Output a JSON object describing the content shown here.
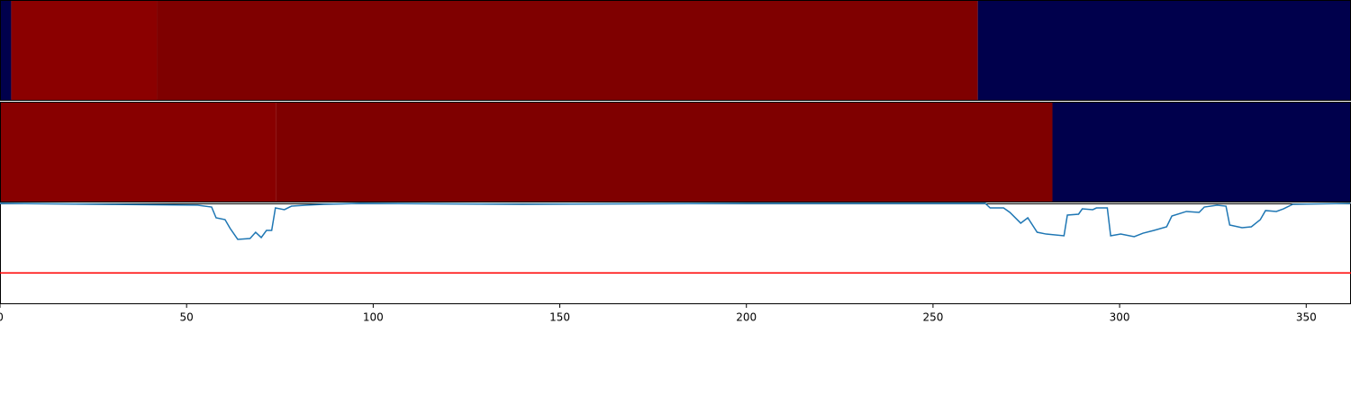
{
  "chart_data": {
    "type": "line",
    "xlim": [
      0,
      362
    ],
    "xticks": [
      0,
      50,
      100,
      150,
      200,
      250,
      300,
      350
    ],
    "ylim": [
      0,
      1
    ],
    "bands": [
      [
        {
          "start": 0,
          "end": 3,
          "color": "#00004c"
        },
        {
          "start": 3,
          "end": 42,
          "color": "#8b0000"
        },
        {
          "start": 42,
          "end": 262,
          "color": "#7f0000"
        },
        {
          "start": 262,
          "end": 362,
          "color": "#00004c"
        }
      ],
      [
        {
          "start": 0,
          "end": 74,
          "color": "#880000"
        },
        {
          "start": 74,
          "end": 282,
          "color": "#7f0000"
        },
        {
          "start": 282,
          "end": 362,
          "color": "#00004c"
        }
      ]
    ],
    "x": [
      0,
      30,
      53,
      56.7,
      57.9,
      60.3,
      61.7,
      63.7,
      67,
      68.5,
      70,
      71.4,
      72.8,
      73.8,
      76.2,
      78.1,
      82,
      86.8,
      96.5,
      140,
      200,
      264,
      265.3,
      268.9,
      270.6,
      273.5,
      275.4,
      277.9,
      280.3,
      285.1,
      286,
      289,
      290,
      292.8,
      293.8,
      296.7,
      297.6,
      300.3,
      303.9,
      306.3,
      309.2,
      312.6,
      314,
      317.9,
      321.3,
      322.7,
      326.1,
      328.5,
      329.5,
      332.8,
      335.3,
      337.7,
      339.1,
      342,
      343.9,
      346.4,
      361.8
    ],
    "series": [
      {
        "color": "#1f77b4",
        "values": [
          1.0,
          0.99,
          0.982,
          0.964,
          0.857,
          0.839,
          0.75,
          0.643,
          0.652,
          0.714,
          0.661,
          0.732,
          0.732,
          0.955,
          0.938,
          0.973,
          0.982,
          0.991,
          1.0,
          0.991,
          1.0,
          1.0,
          0.955,
          0.955,
          0.911,
          0.804,
          0.857,
          0.714,
          0.696,
          0.679,
          0.884,
          0.893,
          0.946,
          0.938,
          0.955,
          0.955,
          0.679,
          0.696,
          0.67,
          0.705,
          0.732,
          0.768,
          0.875,
          0.92,
          0.911,
          0.964,
          0.982,
          0.973,
          0.786,
          0.759,
          0.768,
          0.839,
          0.929,
          0.92,
          0.946,
          0.991,
          1.0
        ]
      }
    ],
    "hline": {
      "value": 0.31,
      "color": "red"
    }
  }
}
